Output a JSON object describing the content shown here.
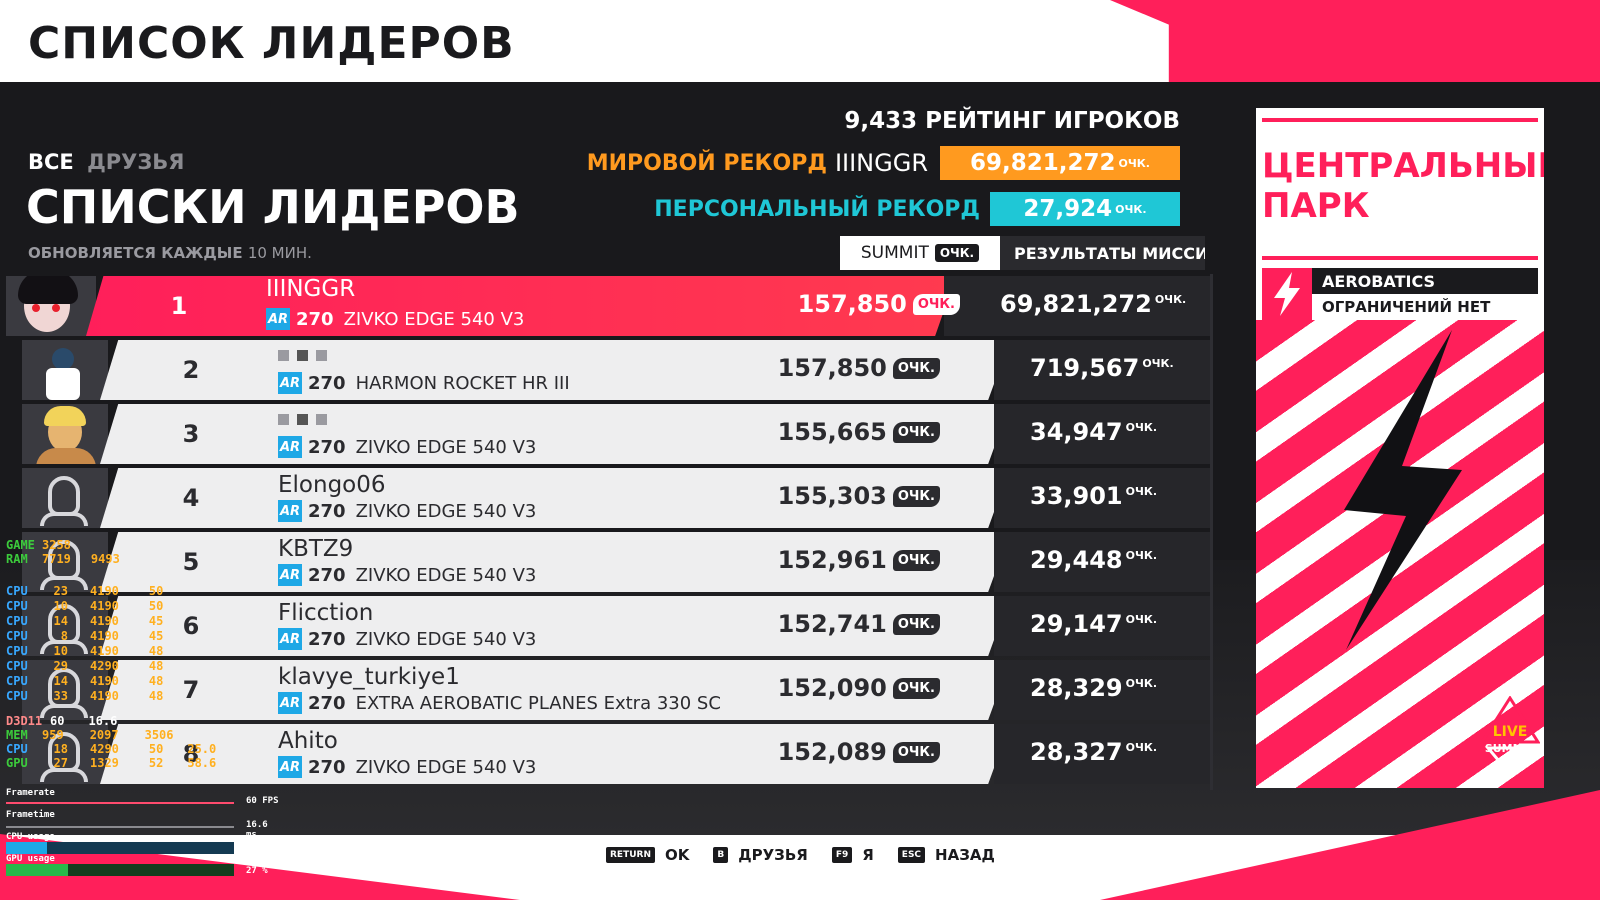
{
  "header": {
    "title": "СПИСОК ЛИДЕРОВ"
  },
  "filters": {
    "active": "ВСЕ",
    "inactive": "ДРУЗЬЯ"
  },
  "leaderboard": {
    "title": "СПИСКИ ЛИДЕРОВ",
    "update_prefix": "ОБНОВЛЯЕТСЯ КАЖДЫЕ",
    "update_interval": "10 МИН."
  },
  "stats": {
    "rating_value": "9,433",
    "rating_label": "РЕЙТИНГ ИГРОКОВ",
    "world_label": "МИРОВОЙ РЕКОРД",
    "world_holder": "IIINGGR",
    "world_score": "69,821,272",
    "personal_label": "ПЕРСОНАЛЬНЫЙ РЕКОРД",
    "personal_score": "27,924",
    "points_suffix": "ОЧК."
  },
  "columns": {
    "summit": "SUMMIT",
    "mission": "РЕЗУЛЬТАТЫ МИССИИ"
  },
  "rows": [
    {
      "rank": "1",
      "name": "IIINGGR",
      "pr": "270",
      "plane": "ZIVKO EDGE 540 V3",
      "score": "157,850",
      "best": "69,821,272"
    },
    {
      "rank": "2",
      "name": "",
      "pr": "270",
      "plane": "HARMON ROCKET HR III",
      "score": "157,850",
      "best": "719,567"
    },
    {
      "rank": "3",
      "name": "",
      "pr": "270",
      "plane": "ZIVKO EDGE 540 V3",
      "score": "155,665",
      "best": "34,947"
    },
    {
      "rank": "4",
      "name": "Elongo06",
      "pr": "270",
      "plane": "ZIVKO EDGE 540 V3",
      "score": "155,303",
      "best": "33,901"
    },
    {
      "rank": "5",
      "name": "KBTZ9",
      "pr": "270",
      "plane": "ZIVKO EDGE 540 V3",
      "score": "152,961",
      "best": "29,448"
    },
    {
      "rank": "6",
      "name": "Flicction",
      "pr": "270",
      "plane": "ZIVKO EDGE 540 V3",
      "score": "152,741",
      "best": "29,147"
    },
    {
      "rank": "7",
      "name": "klavye_turkiye1",
      "pr": "270",
      "plane": "EXTRA AEROBATIC PLANES Extra 330 SC",
      "score": "152,090",
      "best": "28,329"
    },
    {
      "rank": "8",
      "name": "Ahito",
      "pr": "270",
      "plane": "ZIVKO EDGE 540 V3",
      "score": "152,089",
      "best": "28,327"
    }
  ],
  "ar_badge": "AR",
  "card": {
    "location_line1": "ЦЕНТРАЛЬНЫЙ",
    "location_line2": "ПАРК",
    "mode": "AEROBATICS",
    "restriction": "ОГРАНИЧЕНИЙ НЕТ",
    "logo_line1": "LIVE",
    "logo_line2": "SUMMIT"
  },
  "overlay": {
    "game_label": "GAME",
    "game_val": "3258",
    "ram_label": "RAM",
    "ram_val": "7719",
    "ram_extra": "9493",
    "cpu_label": "CPU",
    "cpus": [
      {
        "load": "23",
        "clock": "4190",
        "temp": "50"
      },
      {
        "load": "10",
        "clock": "4190",
        "temp": "50"
      },
      {
        "load": "14",
        "clock": "4190",
        "temp": "45"
      },
      {
        "load": "8",
        "clock": "4190",
        "temp": "45"
      },
      {
        "load": "10",
        "clock": "4190",
        "temp": "48"
      },
      {
        "load": "29",
        "clock": "4290",
        "temp": "48"
      },
      {
        "load": "14",
        "clock": "4190",
        "temp": "48"
      },
      {
        "load": "33",
        "clock": "4190",
        "temp": "48"
      }
    ],
    "d3d_label": "D3D11",
    "fps": "60",
    "frametime": "16.6",
    "mem_label": "MEM",
    "mem_val": "959",
    "mem_clock": "2097",
    "mem_extra": "3506",
    "cpu2_label": "CPU",
    "cpu2_val": "18",
    "cpu2_clock": "4290",
    "cpu2_temp": "50",
    "cpu2_power": "25.0",
    "gpu_label": "GPU",
    "gpu_val": "27",
    "gpu_clock": "1329",
    "gpu_temp": "52",
    "gpu_power": "58.6",
    "graph_framerate": "Framerate",
    "graph_framerate_val": "60 FPS",
    "graph_frametime": "Frametime",
    "graph_frametime_val": "16.6 ms",
    "graph_cpu": "CPU usage",
    "graph_cpu_val": "18 %",
    "graph_cpu_fill": 0.18,
    "graph_gpu": "GPU usage",
    "graph_gpu_val": "27 %",
    "graph_gpu_fill": 0.27
  },
  "controls": [
    {
      "key": "RETURN",
      "label": "OK"
    },
    {
      "key": "B",
      "label": "ДРУЗЬЯ"
    },
    {
      "key": "F9",
      "label": "Я"
    },
    {
      "key": "ESC",
      "label": "НАЗАД"
    }
  ],
  "colors": {
    "accent": "#ff1f5a",
    "world": "#ff9a1f",
    "personal": "#1fc7d6",
    "ar": "#1ea8e6"
  }
}
